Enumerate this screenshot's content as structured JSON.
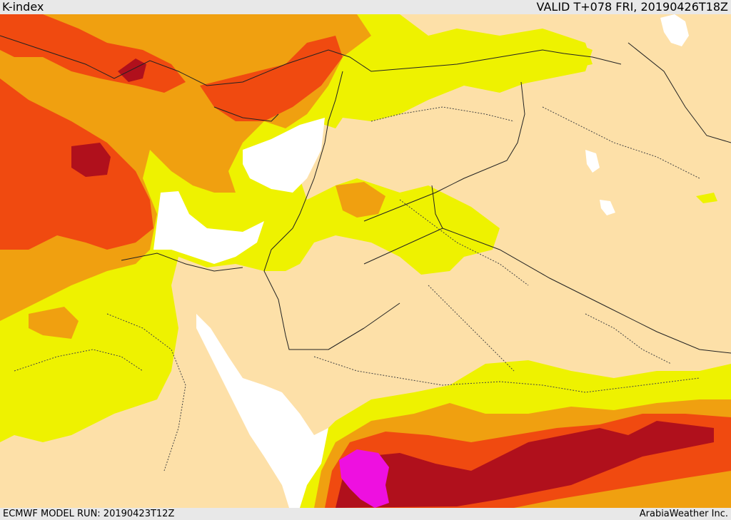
{
  "header": {
    "title": "K-index",
    "valid": "VALID T+078 FRI, 20190426T18Z"
  },
  "footer": {
    "model_run": "ECMWF MODEL RUN: 20190423T12Z",
    "credit": "ArabiaWeather Inc."
  },
  "colors": {
    "background_land": "#fde0a8",
    "level_1_yellow": "#eef200",
    "level_2_orange": "#f0a010",
    "level_3_red": "#f04a10",
    "level_4_darkred": "#b0101c",
    "level_5_magenta": "#ee10e0",
    "water_low": "#ffffff"
  }
}
